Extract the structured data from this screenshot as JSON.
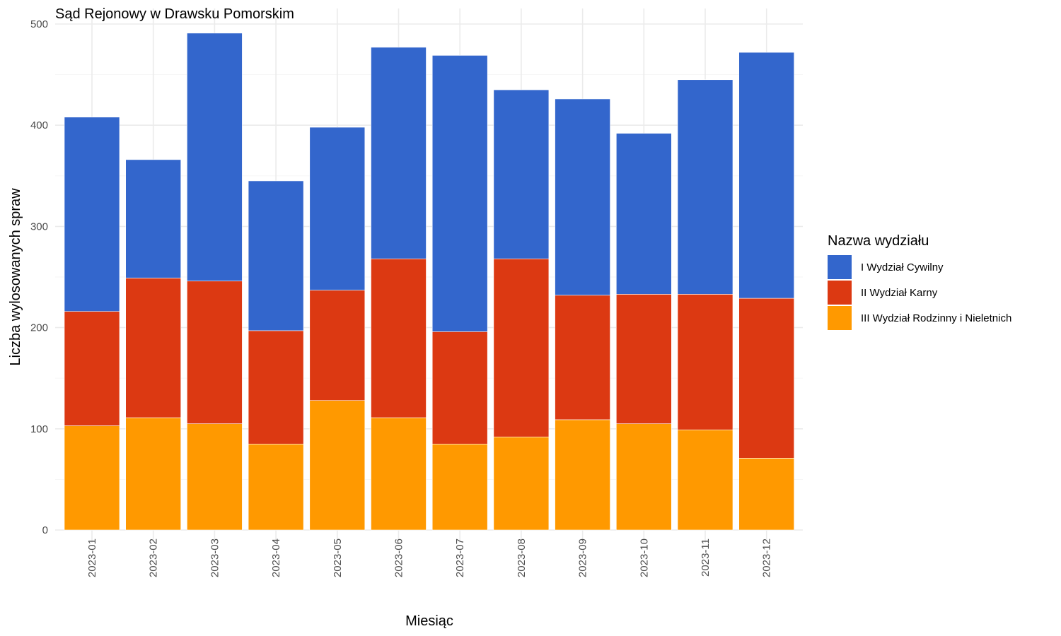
{
  "chart_data": {
    "type": "bar",
    "stacked": true,
    "title": "Sąd Rejonowy w Drawsku Pomorskim",
    "xlabel": "Miesiąc",
    "ylabel": "Liczba wylosowanych spraw",
    "ylim": [
      0,
      500
    ],
    "yticks": [
      0,
      100,
      200,
      300,
      400,
      500
    ],
    "grid": true,
    "legend": {
      "title": "Nazwa wydziału",
      "position": "right"
    },
    "categories": [
      "2023-01",
      "2023-02",
      "2023-03",
      "2023-04",
      "2023-05",
      "2023-06",
      "2023-07",
      "2023-08",
      "2023-09",
      "2023-10",
      "2023-11",
      "2023-12"
    ],
    "series": [
      {
        "name": "III Wydział Rodzinny i Nieletnich",
        "color": "#FF9900",
        "values": [
          103,
          111,
          105,
          85,
          128,
          111,
          85,
          92,
          109,
          105,
          99,
          71
        ]
      },
      {
        "name": "II Wydział Karny",
        "color": "#DC3912",
        "values": [
          113,
          138,
          141,
          112,
          109,
          157,
          111,
          176,
          123,
          128,
          134,
          158
        ]
      },
      {
        "name": "I Wydział Cywilny",
        "color": "#3366CC",
        "values": [
          192,
          117,
          245,
          148,
          161,
          209,
          273,
          167,
          194,
          159,
          212,
          243
        ]
      }
    ],
    "legend_order": [
      "I Wydział Cywilny",
      "II Wydział Karny",
      "III Wydział Rodzinny i Nieletnich"
    ]
  }
}
